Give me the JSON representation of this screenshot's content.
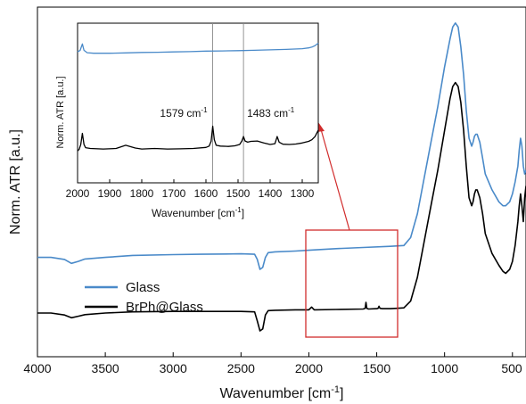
{
  "chart_data": [
    {
      "type": "line",
      "panel": "main",
      "xlabel": "Wavenumber [cm",
      "xlabel_sup": "-1",
      "xlabel_tail": "]",
      "ylabel": "Norm. ATR [a.u.]",
      "xlim": [
        4000,
        400
      ],
      "x_inverted": true,
      "x_ticks": [
        4000,
        3500,
        3000,
        2500,
        2000,
        1500,
        1000,
        500
      ],
      "y_ticks_shown": false,
      "grid": false,
      "legend": {
        "placement": "lower-left",
        "entries": [
          "Glass",
          "BrPh@Glass"
        ]
      },
      "highlight_box": {
        "x_range": [
          2050,
          1350
        ],
        "color": "#d12c2c"
      },
      "series": [
        {
          "name": "Glass",
          "color": "#4a8ac9",
          "x": [
            4000,
            3900,
            3800,
            3750,
            3700,
            3650,
            3500,
            3300,
            3000,
            2800,
            2500,
            2400,
            2380,
            2360,
            2340,
            2320,
            2300,
            2250,
            2100,
            2000,
            1800,
            1600,
            1400,
            1300,
            1250,
            1200,
            1150,
            1100,
            1050,
            1000,
            960,
            940,
            920,
            900,
            880,
            860,
            840,
            820,
            800,
            790,
            780,
            770,
            760,
            740,
            720,
            700,
            650,
            600,
            570,
            550,
            520,
            500,
            480,
            460,
            450,
            440,
            430,
            420,
            410,
            400
          ],
          "y": [
            0.47,
            0.47,
            0.465,
            0.455,
            0.46,
            0.466,
            0.47,
            0.475,
            0.477,
            0.478,
            0.479,
            0.478,
            0.465,
            0.44,
            0.445,
            0.47,
            0.482,
            0.484,
            0.486,
            0.488,
            0.492,
            0.495,
            0.498,
            0.5,
            0.52,
            0.58,
            0.67,
            0.76,
            0.85,
            0.95,
            1.02,
            1.05,
            1.06,
            1.05,
            1.0,
            0.93,
            0.84,
            0.77,
            0.75,
            0.76,
            0.775,
            0.78,
            0.78,
            0.76,
            0.72,
            0.68,
            0.64,
            0.61,
            0.6,
            0.6,
            0.61,
            0.63,
            0.66,
            0.7,
            0.74,
            0.77,
            0.75,
            0.7,
            0.68,
            0.69
          ]
        },
        {
          "name": "BrPh@Glass",
          "color": "#000000",
          "x": [
            4000,
            3900,
            3800,
            3750,
            3700,
            3650,
            3500,
            3300,
            3000,
            2800,
            2500,
            2400,
            2380,
            2360,
            2340,
            2320,
            2300,
            2250,
            2100,
            2000,
            1980,
            1960,
            1800,
            1600,
            1585,
            1579,
            1573,
            1560,
            1500,
            1490,
            1483,
            1476,
            1460,
            1400,
            1350,
            1300,
            1250,
            1200,
            1150,
            1100,
            1050,
            1000,
            960,
            940,
            920,
            900,
            880,
            860,
            840,
            820,
            800,
            790,
            780,
            770,
            760,
            740,
            720,
            700,
            650,
            600,
            570,
            550,
            520,
            500,
            480,
            460,
            450,
            440,
            430,
            420,
            410,
            400
          ],
          "y": [
            0.33,
            0.33,
            0.325,
            0.318,
            0.322,
            0.326,
            0.33,
            0.333,
            0.334,
            0.334,
            0.334,
            0.333,
            0.31,
            0.285,
            0.29,
            0.325,
            0.336,
            0.337,
            0.338,
            0.338,
            0.345,
            0.338,
            0.339,
            0.34,
            0.342,
            0.357,
            0.342,
            0.34,
            0.341,
            0.342,
            0.347,
            0.342,
            0.341,
            0.341,
            0.342,
            0.343,
            0.36,
            0.42,
            0.51,
            0.6,
            0.69,
            0.79,
            0.87,
            0.9,
            0.91,
            0.9,
            0.86,
            0.79,
            0.7,
            0.62,
            0.6,
            0.61,
            0.63,
            0.64,
            0.64,
            0.62,
            0.58,
            0.53,
            0.48,
            0.45,
            0.435,
            0.43,
            0.44,
            0.46,
            0.5,
            0.56,
            0.6,
            0.63,
            0.6,
            0.56,
            0.62,
            0.65
          ]
        }
      ]
    },
    {
      "type": "line",
      "panel": "inset",
      "xlabel": "Wavenumber [cm",
      "xlabel_sup": "-1",
      "xlabel_tail": "]",
      "ylabel": "Norm. ATR [a.u.]",
      "xlim": [
        2000,
        1250
      ],
      "x_inverted": true,
      "x_ticks": [
        2000,
        1900,
        1800,
        1700,
        1600,
        1500,
        1400,
        1300
      ],
      "y_ticks_shown": false,
      "grid": false,
      "annotations": [
        {
          "x": 1579,
          "base": "1579 cm",
          "sup": "-1"
        },
        {
          "x": 1483,
          "base": "1483 cm",
          "sup": "-1"
        }
      ],
      "series": [
        {
          "name": "Glass",
          "color": "#4a8ac9",
          "x": [
            2000,
            1992,
            1985,
            1980,
            1970,
            1950,
            1900,
            1850,
            1800,
            1750,
            1700,
            1650,
            1600,
            1550,
            1500,
            1450,
            1400,
            1350,
            1300,
            1280,
            1270,
            1260,
            1250
          ],
          "y": [
            0.82,
            0.83,
            0.87,
            0.83,
            0.815,
            0.812,
            0.812,
            0.814,
            0.817,
            0.818,
            0.82,
            0.822,
            0.825,
            0.826,
            0.828,
            0.83,
            0.833,
            0.836,
            0.84,
            0.845,
            0.85,
            0.86,
            0.875
          ]
        },
        {
          "name": "BrPh@Glass",
          "color": "#000000",
          "x": [
            2000,
            1995,
            1990,
            1985,
            1980,
            1975,
            1960,
            1920,
            1880,
            1850,
            1820,
            1800,
            1760,
            1720,
            1680,
            1640,
            1600,
            1590,
            1584,
            1579,
            1574,
            1568,
            1555,
            1530,
            1510,
            1495,
            1488,
            1483,
            1478,
            1470,
            1460,
            1440,
            1420,
            1400,
            1385,
            1378,
            1372,
            1360,
            1340,
            1320,
            1300,
            1290,
            1280,
            1270,
            1260,
            1250
          ],
          "y": [
            0.2,
            0.21,
            0.24,
            0.31,
            0.24,
            0.22,
            0.215,
            0.212,
            0.215,
            0.235,
            0.218,
            0.212,
            0.215,
            0.212,
            0.213,
            0.215,
            0.222,
            0.23,
            0.26,
            0.355,
            0.27,
            0.235,
            0.23,
            0.228,
            0.232,
            0.24,
            0.262,
            0.29,
            0.262,
            0.255,
            0.26,
            0.262,
            0.25,
            0.24,
            0.245,
            0.29,
            0.255,
            0.242,
            0.24,
            0.243,
            0.25,
            0.255,
            0.26,
            0.27,
            0.29,
            0.33
          ]
        }
      ]
    }
  ]
}
